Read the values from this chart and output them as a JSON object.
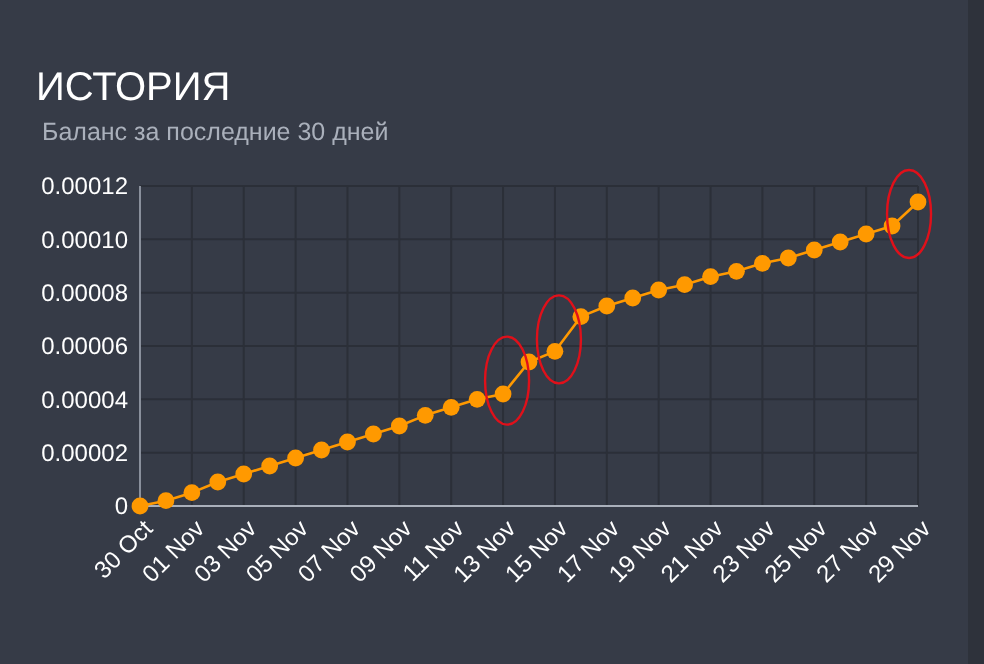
{
  "chart_data": {
    "type": "line",
    "title": "ИСТОРИЯ",
    "subtitle": "Баланс за последние 30 дней",
    "categories": [
      "30 Oct",
      null,
      "01 Nov",
      null,
      "03 Nov",
      null,
      "05 Nov",
      null,
      "07 Nov",
      null,
      "09 Nov",
      null,
      "11 Nov",
      null,
      "13 Nov",
      null,
      "15 Nov",
      null,
      "17 Nov",
      null,
      "19 Nov",
      null,
      "21 Nov",
      null,
      "23 Nov",
      null,
      "25 Nov",
      null,
      "27 Nov",
      null,
      "29 Nov"
    ],
    "series": [
      {
        "color": "#ff9900",
        "values": [
          0,
          2e-06,
          5e-06,
          9e-06,
          1.2e-05,
          1.5e-05,
          1.8e-05,
          2.1e-05,
          2.4e-05,
          2.7e-05,
          3e-05,
          3.4e-05,
          3.7e-05,
          4e-05,
          4.2e-05,
          5.4e-05,
          5.8e-05,
          7.1e-05,
          7.5e-05,
          7.8e-05,
          8.1e-05,
          8.3e-05,
          8.6e-05,
          8.8e-05,
          9.1e-05,
          9.3e-05,
          9.6e-05,
          9.9e-05,
          0.000102,
          0.000105,
          0.000114
        ]
      }
    ],
    "ylim": [
      0,
      0.00012
    ],
    "yticks": [
      0,
      {
        "value": 2e-05,
        "label": "0.00002"
      },
      {
        "value": 4e-05,
        "label": "0.00004"
      },
      {
        "value": 6e-05,
        "label": "0.00006"
      },
      {
        "value": 8e-05,
        "label": "0.00008"
      },
      {
        "value": 0.0001,
        "label": "0.00010"
      },
      {
        "value": 0.00012,
        "label": "0.00012"
      }
    ],
    "grid": true,
    "marker": "circle",
    "line_style": "solid"
  }
}
